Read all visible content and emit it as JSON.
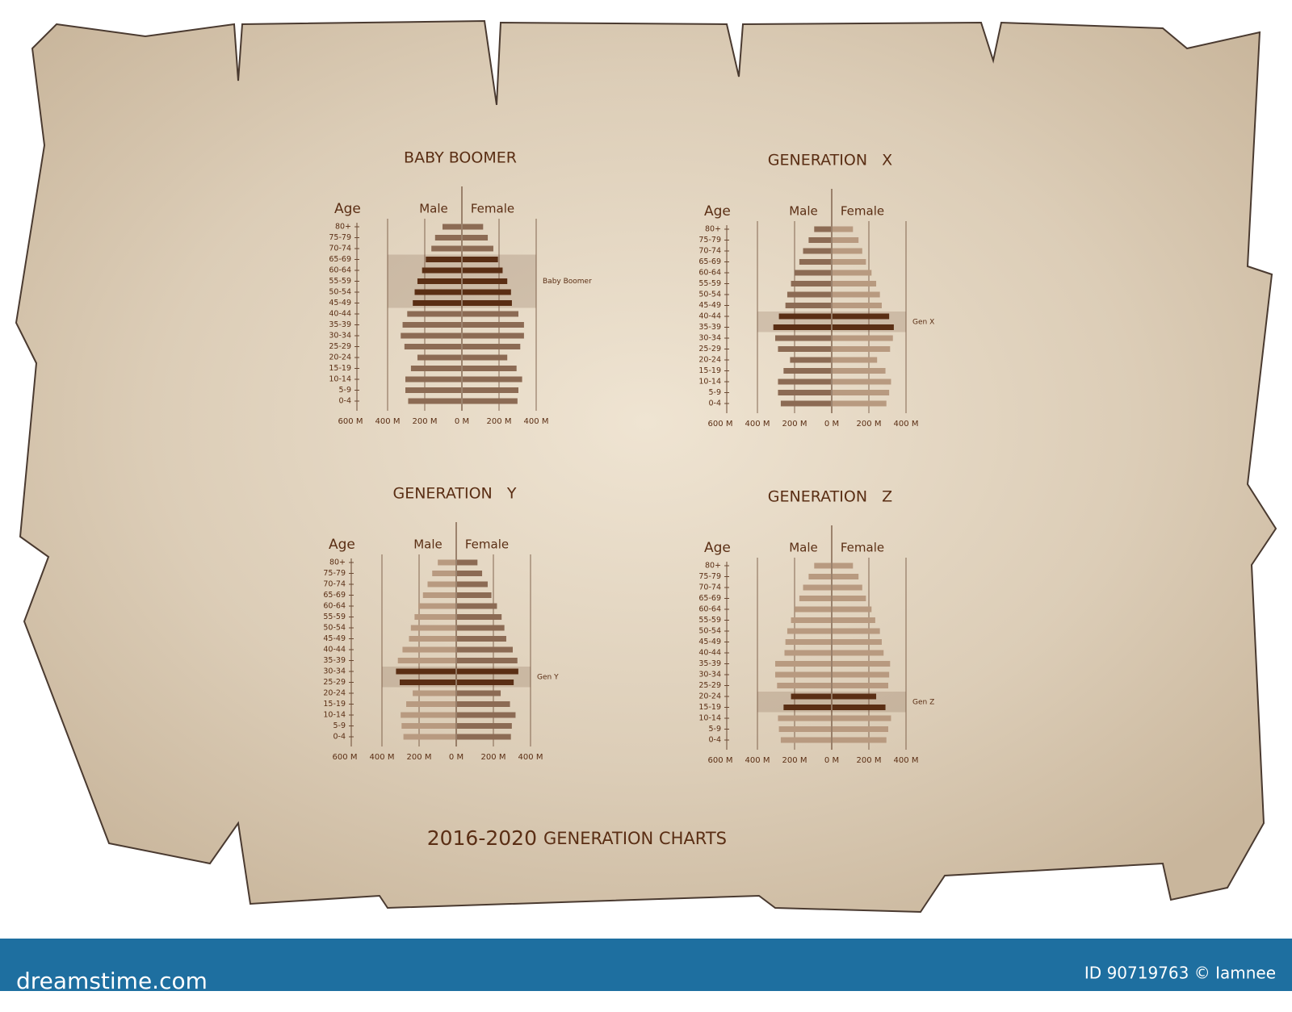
{
  "title": {
    "years": "2016-2020",
    "text": "GENERATION CHARTS"
  },
  "footer": {
    "site": "dreamstime.com",
    "credit": "ID 90719763 © Iamnee"
  },
  "chart_data": [
    {
      "type": "pyramid",
      "title": "BABY BOOMER",
      "y_label": "Age",
      "categories": [
        "80+",
        "75-79",
        "70-74",
        "65-69",
        "60-64",
        "55-59",
        "50-54",
        "45-49",
        "40-44",
        "35-39",
        "30-34",
        "25-29",
        "20-24",
        "15-19",
        "10-14",
        "5-9",
        "0-4"
      ],
      "series": [
        {
          "name": "Male",
          "side": "left",
          "color": "#8c6b54",
          "highlight_color": "#5a2e14",
          "values": [
            100,
            140,
            160,
            190,
            210,
            235,
            250,
            260,
            290,
            315,
            325,
            305,
            235,
            270,
            300,
            300,
            285
          ]
        },
        {
          "name": "Female",
          "side": "right",
          "color": "#8c6b54",
          "highlight_color": "#5a2e14",
          "values": [
            110,
            135,
            165,
            190,
            215,
            240,
            260,
            265,
            300,
            330,
            330,
            310,
            240,
            290,
            320,
            300,
            295
          ]
        }
      ],
      "highlight": {
        "label": "Baby Boomer",
        "first": "65-69",
        "last": "45-49"
      },
      "xlim": [
        -600,
        400
      ],
      "xticks": [
        {
          "value": -600,
          "label": "600 M"
        },
        {
          "value": -400,
          "label": "400 M"
        },
        {
          "value": -200,
          "label": "200 M"
        },
        {
          "value": 0,
          "label": "0 M"
        },
        {
          "value": 200,
          "label": "200 M"
        },
        {
          "value": 400,
          "label": "400 M"
        }
      ]
    },
    {
      "type": "pyramid",
      "title": "GENERATION   X",
      "y_label": "Age",
      "categories": [
        "80+",
        "75-79",
        "70-74",
        "65-69",
        "60-64",
        "55-59",
        "50-54",
        "45-49",
        "40-44",
        "35-39",
        "30-34",
        "25-29",
        "20-24",
        "15-19",
        "10-14",
        "5-9",
        "0-4"
      ],
      "series": [
        {
          "name": "Male",
          "side": "left",
          "color": "#8c6b54",
          "highlight_color": "#5a2e14",
          "values": [
            90,
            120,
            150,
            170,
            195,
            215,
            235,
            245,
            280,
            310,
            300,
            285,
            220,
            255,
            285,
            285,
            270
          ]
        },
        {
          "name": "Female",
          "side": "right",
          "color": "#b89a80",
          "highlight_color": "#5a2e14",
          "values": [
            110,
            140,
            160,
            180,
            210,
            235,
            255,
            265,
            305,
            330,
            325,
            310,
            240,
            285,
            315,
            305,
            290
          ]
        }
      ],
      "highlight": {
        "label": "Gen X",
        "first": "40-44",
        "last": "35-39"
      },
      "xlim": [
        -600,
        400
      ],
      "xticks": [
        {
          "value": -600,
          "label": "600 M"
        },
        {
          "value": -400,
          "label": "400 M"
        },
        {
          "value": -200,
          "label": "200 M"
        },
        {
          "value": 0,
          "label": "0 M"
        },
        {
          "value": 200,
          "label": "200 M"
        },
        {
          "value": 400,
          "label": "400 M"
        }
      ]
    },
    {
      "type": "pyramid",
      "title": "GENERATION   Y",
      "y_label": "Age",
      "categories": [
        "80+",
        "75-79",
        "70-74",
        "65-69",
        "60-64",
        "55-59",
        "50-54",
        "45-49",
        "40-44",
        "35-39",
        "30-34",
        "25-29",
        "20-24",
        "15-19",
        "10-14",
        "5-9",
        "0-4"
      ],
      "series": [
        {
          "name": "Male",
          "side": "left",
          "color": "#b89a80",
          "highlight_color": "#5a2e14",
          "values": [
            95,
            125,
            150,
            175,
            200,
            220,
            240,
            250,
            285,
            310,
            320,
            300,
            230,
            265,
            295,
            290,
            280
          ]
        },
        {
          "name": "Female",
          "side": "right",
          "color": "#8c6b54",
          "highlight_color": "#5a2e14",
          "values": [
            110,
            135,
            165,
            185,
            215,
            240,
            255,
            265,
            300,
            325,
            330,
            305,
            235,
            285,
            315,
            295,
            290
          ]
        }
      ],
      "highlight": {
        "label": "Gen Y",
        "first": "30-34",
        "last": "25-29"
      },
      "xlim": [
        -600,
        400
      ],
      "xticks": [
        {
          "value": -600,
          "label": "600 M"
        },
        {
          "value": -400,
          "label": "400 M"
        },
        {
          "value": -200,
          "label": "200 M"
        },
        {
          "value": 0,
          "label": "0 M"
        },
        {
          "value": 200,
          "label": "200 M"
        },
        {
          "value": 400,
          "label": "400 M"
        }
      ]
    },
    {
      "type": "pyramid",
      "title": "GENERATION   Z",
      "y_label": "Age",
      "categories": [
        "80+",
        "75-79",
        "70-74",
        "65-69",
        "60-64",
        "55-59",
        "50-54",
        "45-49",
        "40-44",
        "35-39",
        "30-34",
        "25-29",
        "20-24",
        "15-19",
        "10-14",
        "5-9",
        "0-4"
      ],
      "series": [
        {
          "name": "Male",
          "side": "left",
          "color": "#b89a80",
          "highlight_color": "#5a2e14",
          "values": [
            90,
            120,
            150,
            170,
            195,
            215,
            235,
            245,
            250,
            300,
            300,
            290,
            215,
            255,
            285,
            280,
            270
          ]
        },
        {
          "name": "Female",
          "side": "right",
          "color": "#b89a80",
          "highlight_color": "#5a2e14",
          "values": [
            110,
            140,
            160,
            180,
            210,
            230,
            255,
            265,
            275,
            310,
            305,
            300,
            235,
            285,
            315,
            300,
            290
          ]
        }
      ],
      "highlight": {
        "label": "Gen Z",
        "first": "20-24",
        "last": "15-19"
      },
      "xlim": [
        -600,
        400
      ],
      "xticks": [
        {
          "value": -600,
          "label": "600 M"
        },
        {
          "value": -400,
          "label": "400 M"
        },
        {
          "value": -200,
          "label": "200 M"
        },
        {
          "value": 0,
          "label": "0 M"
        },
        {
          "value": 200,
          "label": "200 M"
        },
        {
          "value": 400,
          "label": "400 M"
        }
      ]
    }
  ]
}
